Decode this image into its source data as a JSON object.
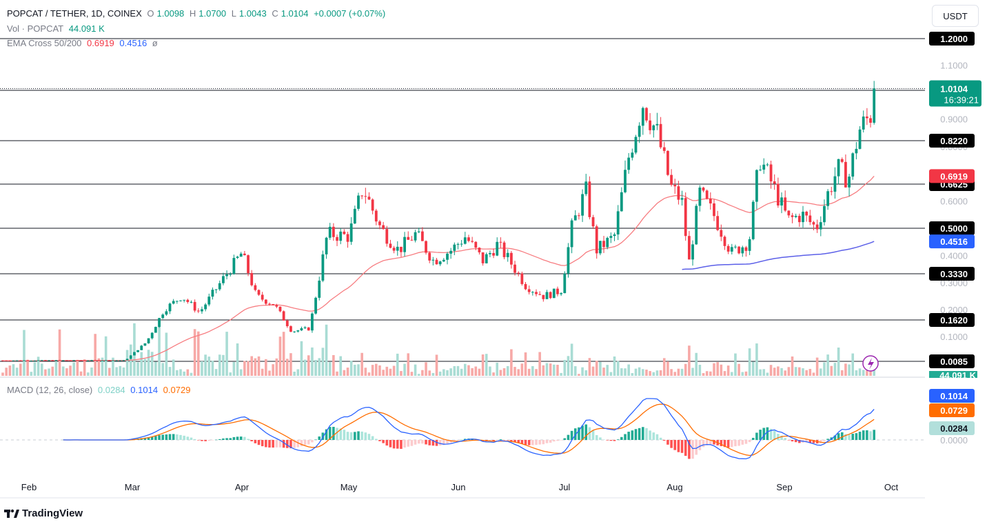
{
  "header": {
    "symbol": "POPCAT / TETHER, 1D, COINEX",
    "open_label": "O",
    "open": "1.0098",
    "high_label": "H",
    "high": "1.0700",
    "low_label": "L",
    "low": "1.0043",
    "close_label": "C",
    "close": "1.0104",
    "change": "+0.0007 (+0.07%)",
    "vol_label": "Vol · POPCAT",
    "vol_value": "44.091 K",
    "ema_label": "EMA Cross 50/200",
    "ema50": "0.6919",
    "ema200": "0.4516",
    "ema_icon": "ø",
    "macd_label": "MACD (12, 26, close)",
    "macd_hist": "0.0284",
    "macd_line": "0.1014",
    "macd_signal": "0.0729"
  },
  "currency_button": "USDT",
  "footer": {
    "brand": "TradingView",
    "logo_icon": "tradingview-logo-icon"
  },
  "price_badges": {
    "last_price": "1.0104",
    "countdown": "16:39:21",
    "ema50": "0.6919",
    "ema200": "0.4516",
    "volume": "44.091 K",
    "macd_line": "0.1014",
    "macd_signal": "0.0729",
    "macd_hist": "0.0284"
  },
  "colors": {
    "up": "#089981",
    "down": "#f23645",
    "ema50": "#f77c80",
    "ema200": "#5b5fe8",
    "macd": "#2962ff",
    "signal": "#ff6d00",
    "vol_up": "#a9dcd4",
    "vol_down": "#f7a9a7"
  },
  "chart_data": [
    {
      "type": "candlestick",
      "title": "POPCAT / TETHER, 1D, COINEX",
      "x_ticks": [
        "Feb",
        "Mar",
        "Apr",
        "May",
        "Jun",
        "Jul",
        "Aug",
        "Sep",
        "Oct"
      ],
      "y_ticks": [
        "1.1000",
        "0.9000",
        "0.8000",
        "0.6000",
        "0.4000",
        "0.3000",
        "0.2000",
        "0.1000"
      ],
      "horizontal_levels": [
        "1.2000",
        "1.0040",
        "0.8220",
        "0.6625",
        "0.5000",
        "0.3330",
        "0.1620",
        "0.0085"
      ],
      "last_close": 1.0104,
      "ema50_last": 0.6919,
      "ema200_last": 0.4516,
      "series": [
        {
          "name": "EMA Cross 50/200",
          "values": [
            0.6919
          ]
        },
        {
          "name": "MACD",
          "values": [
            0.1014
          ]
        }
      ],
      "close_path": [
        [
          "Feb 28",
          0.012
        ],
        [
          "Mar 5",
          0.08
        ],
        [
          "Mar 10",
          0.2
        ],
        [
          "Mar 15",
          0.25
        ],
        [
          "Mar 20",
          0.19
        ],
        [
          "Mar 27",
          0.32
        ],
        [
          "Apr 1",
          0.41
        ],
        [
          "Apr 5",
          0.25
        ],
        [
          "Apr 10",
          0.22
        ],
        [
          "Apr 15",
          0.12
        ],
        [
          "Apr 20",
          0.13
        ],
        [
          "Apr 25",
          0.48
        ],
        [
          "May 1",
          0.47
        ],
        [
          "May 5",
          0.65
        ],
        [
          "May 10",
          0.5
        ],
        [
          "May 15",
          0.42
        ],
        [
          "May 20",
          0.48
        ],
        [
          "May 25",
          0.38
        ],
        [
          "May 30",
          0.42
        ],
        [
          "Jun 3",
          0.47
        ],
        [
          "Jun 8",
          0.38
        ],
        [
          "Jun 12",
          0.44
        ],
        [
          "Jun 15",
          0.39
        ],
        [
          "Jun 20",
          0.29
        ],
        [
          "Jun 25",
          0.25
        ],
        [
          "Jun 30",
          0.27
        ],
        [
          "Jul 3",
          0.5
        ],
        [
          "Jul 7",
          0.64
        ],
        [
          "Jul 10",
          0.42
        ],
        [
          "Jul 15",
          0.47
        ],
        [
          "Jul 19",
          0.76
        ],
        [
          "Jul 23",
          0.96
        ],
        [
          "Jul 27",
          0.85
        ],
        [
          "Jul 31",
          0.65
        ],
        [
          "Aug 3",
          0.6
        ],
        [
          "Aug 5",
          0.37
        ],
        [
          "Aug 8",
          0.63
        ],
        [
          "Aug 12",
          0.55
        ],
        [
          "Aug 17",
          0.41
        ],
        [
          "Aug 22",
          0.45
        ],
        [
          "Aug 25",
          0.76
        ],
        [
          "Aug 29",
          0.65
        ],
        [
          "Sep 2",
          0.53
        ],
        [
          "Sep 6",
          0.55
        ],
        [
          "Sep 10",
          0.5
        ],
        [
          "Sep 13",
          0.62
        ],
        [
          "Sep 16",
          0.72
        ],
        [
          "Sep 19",
          0.68
        ],
        [
          "Sep 22",
          0.86
        ],
        [
          "Sep 26",
          0.93
        ],
        [
          "Sep 27",
          1.0104
        ]
      ]
    },
    {
      "type": "bar",
      "title": "MACD (12, 26, close)",
      "y_ticks": [
        "0.0000"
      ],
      "macd": 0.1014,
      "signal": 0.0729,
      "histogram": 0.0284
    }
  ]
}
